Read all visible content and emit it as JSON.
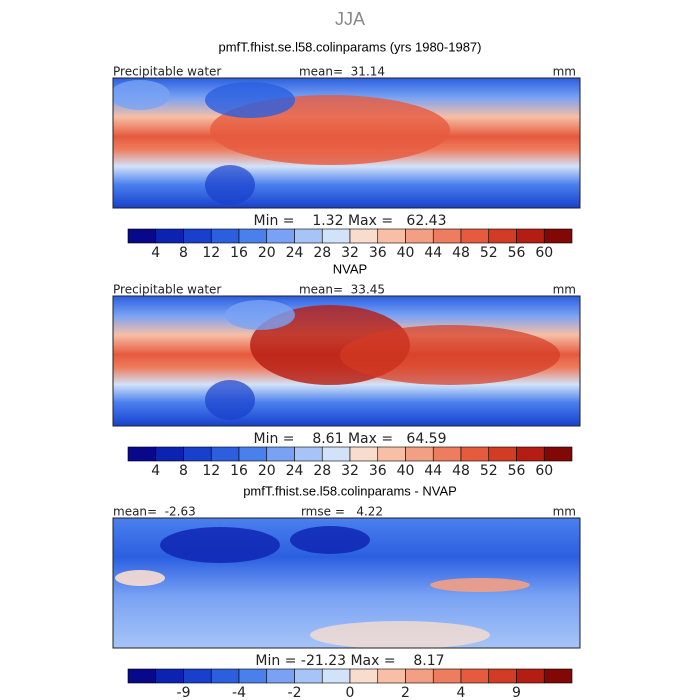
{
  "figure_title": "JJA",
  "panels": [
    {
      "title": "pmfT.fhist.se.l58.colinparams (yrs 1980-1987)",
      "left_label": "Precipitable water",
      "center_label": "mean=  31.14",
      "right_label": "mm",
      "minmax": "Min =    1.32 Max =   62.43",
      "colorbar": {
        "labels": [
          4,
          8,
          12,
          16,
          20,
          24,
          28,
          32,
          36,
          40,
          44,
          48,
          52,
          56,
          60
        ],
        "colors": [
          "#08088a",
          "#0c22b0",
          "#1840cc",
          "#2b5fe0",
          "#4a80ee",
          "#79a2f4",
          "#a6c4f7",
          "#d2e2f8",
          "#f8ddcf",
          "#f7bfa6",
          "#f39f83",
          "#ee7c5e",
          "#e65a3e",
          "#d43b24",
          "#b51c12",
          "#820805"
        ]
      }
    },
    {
      "title": "NVAP",
      "left_label": "Precipitable water",
      "center_label": "mean=  33.45",
      "right_label": "mm",
      "minmax": "Min =    8.61 Max =   64.59",
      "colorbar": {
        "labels": [
          4,
          8,
          12,
          16,
          20,
          24,
          28,
          32,
          36,
          40,
          44,
          48,
          52,
          56,
          60
        ],
        "colors": [
          "#08088a",
          "#0c22b0",
          "#1840cc",
          "#2b5fe0",
          "#4a80ee",
          "#79a2f4",
          "#a6c4f7",
          "#d2e2f8",
          "#f8ddcf",
          "#f7bfa6",
          "#f39f83",
          "#ee7c5e",
          "#e65a3e",
          "#d43b24",
          "#b51c12",
          "#820805"
        ]
      }
    },
    {
      "title": "pmfT.fhist.se.l58.colinparams - NVAP",
      "left_label": "mean=  -2.63",
      "center_label": "rmse =   4.22",
      "right_label": "mm",
      "minmax": "Min = -21.23 Max =    8.17",
      "colorbar": {
        "labels": [
          -9,
          -4,
          -2,
          0,
          2,
          4,
          9
        ],
        "colors": [
          "#08088a",
          "#0c22b0",
          "#1840cc",
          "#2b5fe0",
          "#4a80ee",
          "#79a2f4",
          "#a6c4f7",
          "#d2e2f8",
          "#f8ddcf",
          "#f7bfa6",
          "#f39f83",
          "#ee7c5e",
          "#e65a3e",
          "#d43b24",
          "#b51c12",
          "#820805"
        ]
      }
    }
  ]
}
